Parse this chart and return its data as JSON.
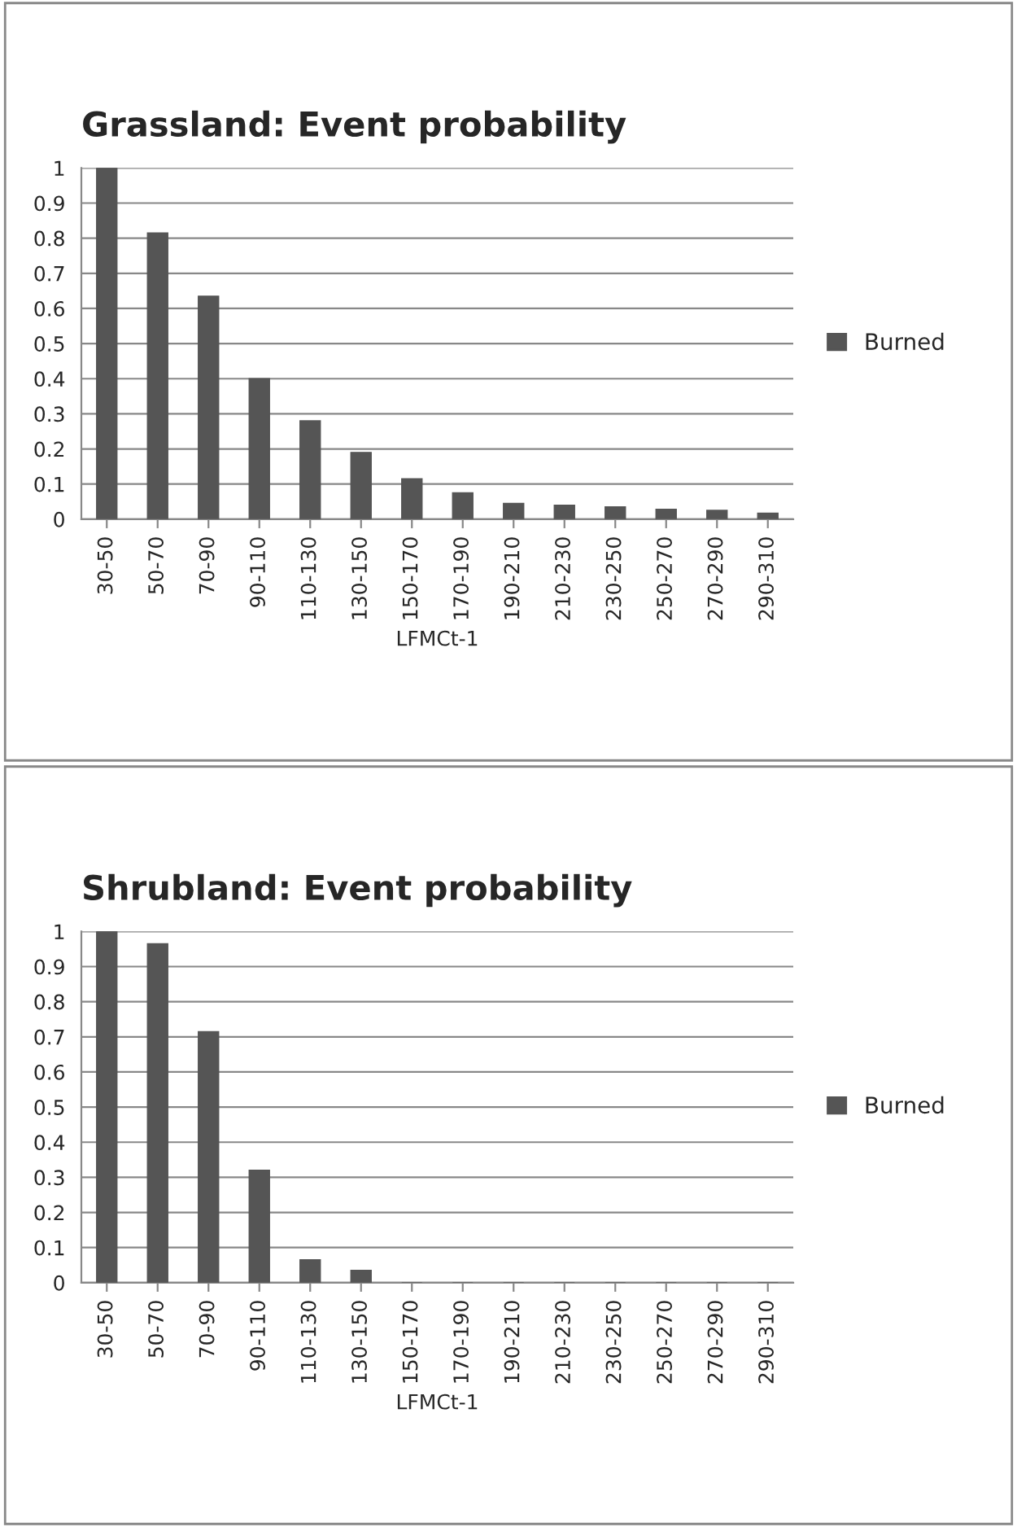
{
  "chart_data": [
    {
      "type": "bar",
      "title": "Grassland: Event probability",
      "xlabel": "LFMCt-1",
      "categories": [
        "30-50",
        "50-70",
        "70-90",
        "90-110",
        "110-130",
        "130-150",
        "150-170",
        "170-190",
        "190-210",
        "210-230",
        "230-250",
        "250-270",
        "270-290",
        "290-310"
      ],
      "series": [
        {
          "name": "Burned",
          "color": "#555555",
          "values": [
            1,
            0.815,
            0.635,
            0.4,
            0.28,
            0.19,
            0.115,
            0.075,
            0.045,
            0.04,
            0.035,
            0.028,
            0.025,
            0.017
          ]
        }
      ],
      "ylim": [
        0,
        1
      ],
      "yticks": [
        0,
        0.1,
        0.2,
        0.3,
        0.4,
        0.5,
        0.6,
        0.7,
        0.8,
        0.9,
        1
      ],
      "grid": "y",
      "legend": "right"
    },
    {
      "type": "bar",
      "title": "Shrubland: Event probability",
      "xlabel": "LFMCt-1",
      "categories": [
        "30-50",
        "50-70",
        "70-90",
        "90-110",
        "110-130",
        "130-150",
        "150-170",
        "170-190",
        "190-210",
        "210-230",
        "230-250",
        "250-270",
        "270-290",
        "290-310"
      ],
      "series": [
        {
          "name": "Burned",
          "color": "#555555",
          "values": [
            1,
            0.965,
            0.715,
            0.32,
            0.065,
            0.035,
            0,
            0,
            0,
            0,
            0,
            0,
            0,
            0
          ]
        }
      ],
      "ylim": [
        0,
        1
      ],
      "yticks": [
        0,
        0.1,
        0.2,
        0.3,
        0.4,
        0.5,
        0.6,
        0.7,
        0.8,
        0.9,
        1
      ],
      "grid": "y",
      "legend": "right"
    }
  ]
}
